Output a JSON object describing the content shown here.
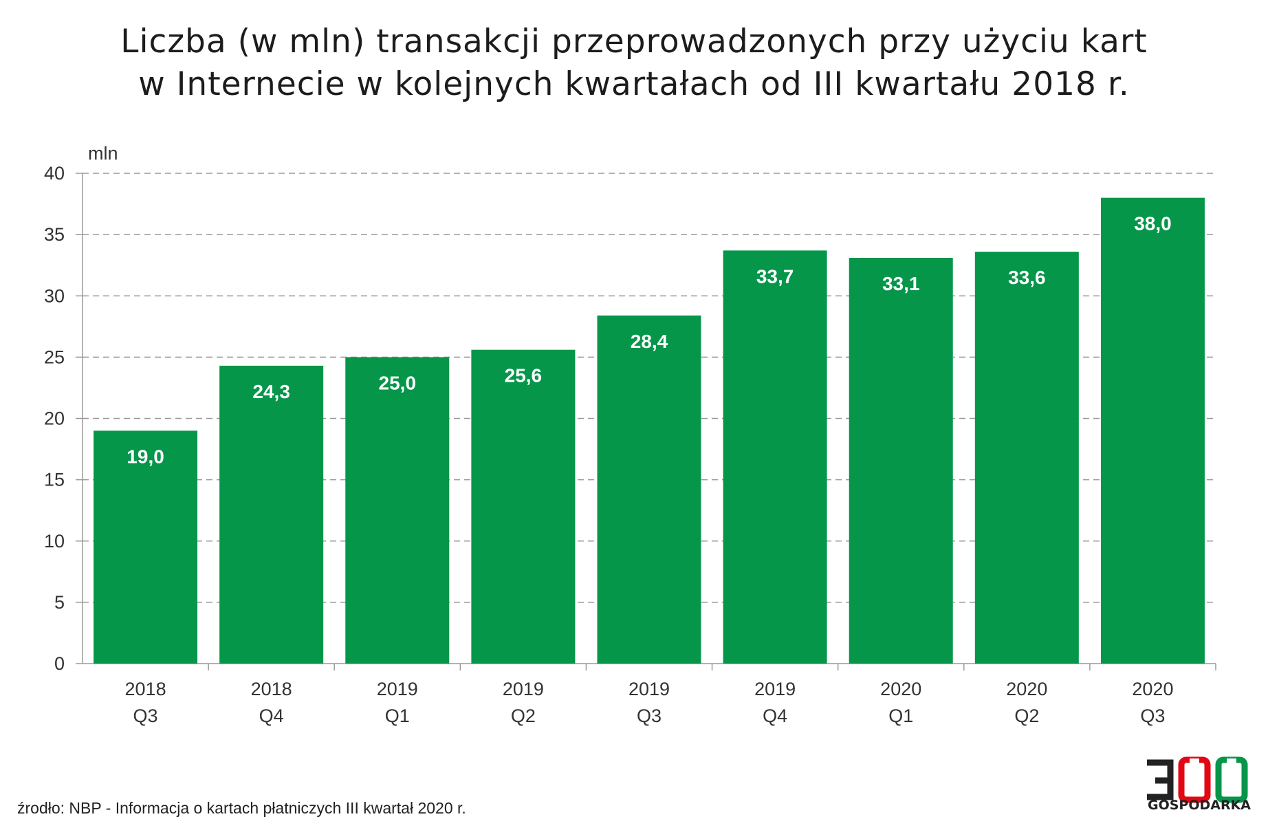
{
  "title_lines": [
    "Liczba (w mln) transakcji przeprowadzonych przy użyciu kart",
    "w Internecie w kolejnych kwartałach od III kwartału 2018 r."
  ],
  "source": "źrodło: NBP - Informacja o kartach płatniczych III kwartał 2020 r.",
  "logo": {
    "number": "300",
    "text": "GOSPODARKA",
    "colors": {
      "dark": "#222222",
      "red": "#e30613",
      "green": "#05964a"
    }
  },
  "chart_data": {
    "type": "bar",
    "title": "Liczba (w mln) transakcji przeprowadzonych przy użyciu kart w Internecie w kolejnych kwartałach od III kwartału 2018 r.",
    "ylabel": "mln",
    "xlabel": "",
    "ylim": [
      0,
      40
    ],
    "yticks": [
      0,
      5,
      10,
      15,
      20,
      25,
      30,
      35,
      40
    ],
    "grid": true,
    "bar_color": "#05964a",
    "categories": [
      [
        "2018",
        "Q3"
      ],
      [
        "2018",
        "Q4"
      ],
      [
        "2019",
        "Q1"
      ],
      [
        "2019",
        "Q2"
      ],
      [
        "2019",
        "Q3"
      ],
      [
        "2019",
        "Q4"
      ],
      [
        "2020",
        "Q1"
      ],
      [
        "2020",
        "Q2"
      ],
      [
        "2020",
        "Q3"
      ]
    ],
    "values": [
      19.0,
      24.3,
      25.0,
      25.6,
      28.4,
      33.7,
      33.1,
      33.6,
      38.0
    ],
    "value_labels": [
      "19,0",
      "24,3",
      "25,0",
      "25,6",
      "28,4",
      "33,7",
      "33,1",
      "33,6",
      "38,0"
    ]
  }
}
